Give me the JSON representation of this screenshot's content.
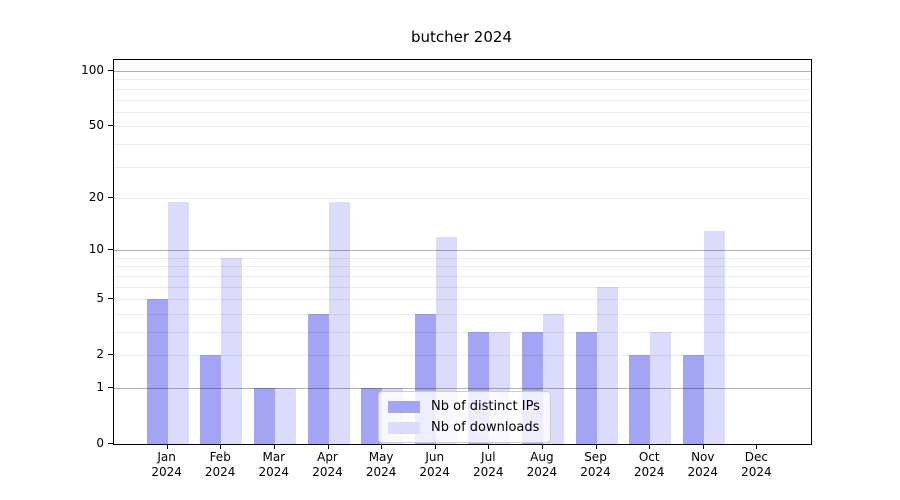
{
  "title": "butcher 2024",
  "chart_data": {
    "type": "bar",
    "title": "butcher 2024",
    "categories": [
      "Jan",
      "Feb",
      "Mar",
      "Apr",
      "May",
      "Jun",
      "Jul",
      "Aug",
      "Sep",
      "Oct",
      "Nov",
      "Dec"
    ],
    "category_year": "2024",
    "series": [
      {
        "name": "Nb of distinct IPs",
        "color": "#a4a4f4",
        "values": [
          5,
          2,
          1,
          4,
          1,
          4,
          3,
          3,
          3,
          2,
          2,
          0
        ]
      },
      {
        "name": "Nb of downloads",
        "color": "#dbdbfb",
        "values": [
          19,
          9,
          1,
          19,
          1,
          12,
          3,
          4,
          6,
          3,
          13,
          0
        ]
      }
    ],
    "yscale": "log10(value+1)",
    "yticks": [
      0,
      1,
      2,
      5,
      10,
      20,
      50,
      100
    ],
    "major_gridlines": [
      1,
      10,
      100
    ],
    "minor_gridlines": [
      2,
      3,
      4,
      5,
      6,
      7,
      8,
      9,
      20,
      30,
      40,
      50,
      60,
      70,
      80,
      90
    ],
    "grid": true,
    "legend_position": "lower center",
    "ylim": [
      0,
      115
    ],
    "xlabel": "",
    "ylabel": ""
  },
  "colors": {
    "bar_dark": "#a4a4f4",
    "bar_light": "#dbdbfb",
    "grid_major": "#b3b3b3",
    "grid_minor": "#ebebeb",
    "spine": "#000000",
    "background": "#ffffff"
  }
}
